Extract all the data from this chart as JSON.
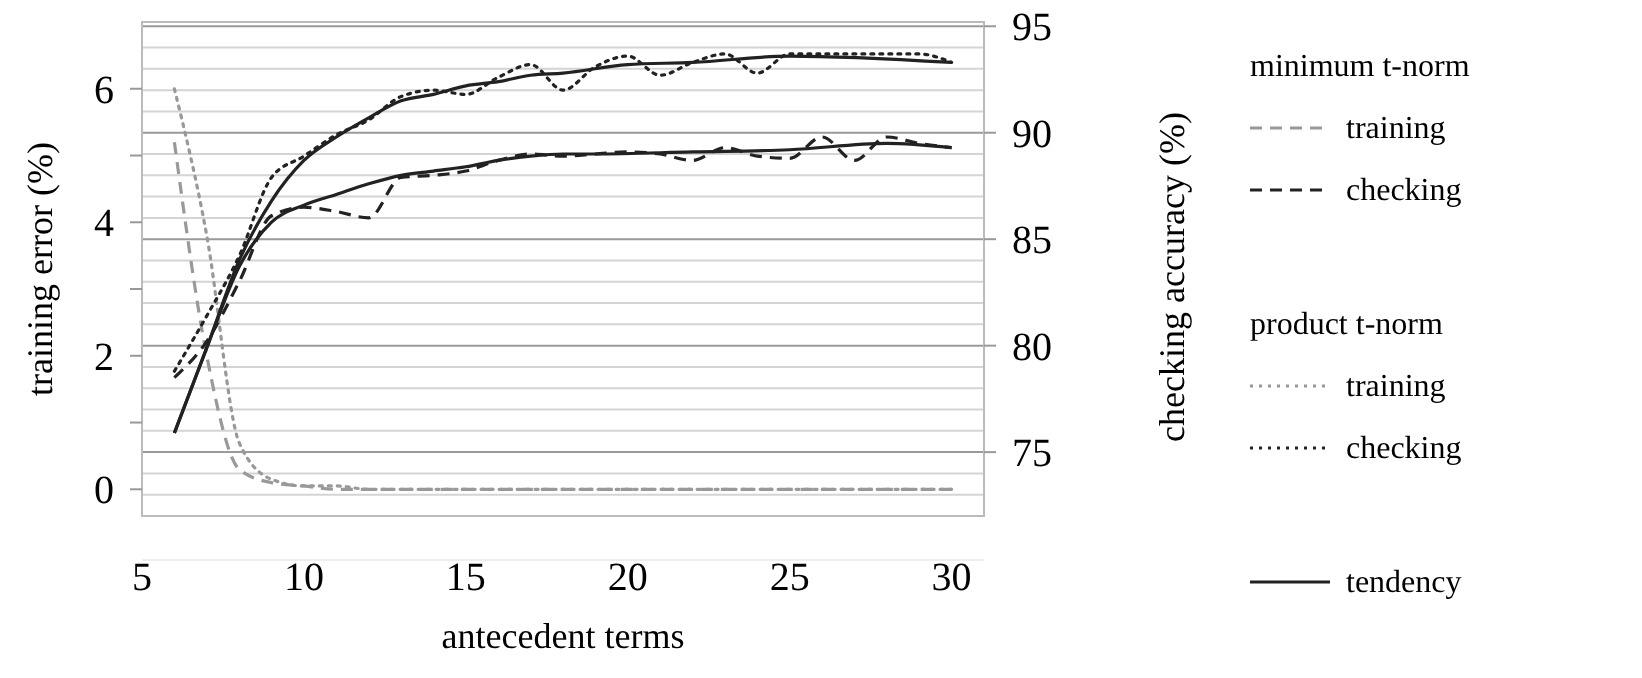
{
  "chart_data": {
    "type": "line",
    "xlabel": "antecedent terms",
    "ylabel": "training error (%)",
    "y2label": "checking accuracy (%)",
    "xlim": [
      5,
      31
    ],
    "xticks": [
      5,
      10,
      15,
      20,
      25,
      30
    ],
    "ylim": [
      -0.4,
      7
    ],
    "yticks": [
      0,
      {
        "value": 1,
        "label": null
      },
      2,
      {
        "value": 3,
        "label": null
      },
      4,
      {
        "value": 5,
        "label": null
      },
      6
    ],
    "y2lim": [
      72,
      95.2
    ],
    "y2ticks": [
      {
        "value": 72,
        "label": null
      },
      {
        "value": 73,
        "label": null
      },
      {
        "value": 74,
        "label": null
      },
      75,
      {
        "value": 76,
        "label": null
      },
      {
        "value": 77,
        "label": null
      },
      {
        "value": 78,
        "label": null
      },
      {
        "value": 79,
        "label": null
      },
      80,
      {
        "value": 81,
        "label": null
      },
      {
        "value": 82,
        "label": null
      },
      {
        "value": 83,
        "label": null
      },
      {
        "value": 84,
        "label": null
      },
      85,
      {
        "value": 86,
        "label": null
      },
      {
        "value": 87,
        "label": null
      },
      {
        "value": 88,
        "label": null
      },
      {
        "value": 89,
        "label": null
      },
      90,
      {
        "value": 91,
        "label": null
      },
      {
        "value": 92,
        "label": null
      },
      {
        "value": 93,
        "label": null
      },
      {
        "value": 94,
        "label": null
      },
      95
    ],
    "grid": "y",
    "legend": "right",
    "marker": "none",
    "annotations": [
      "minimum t-norm",
      "product t-norm"
    ],
    "x": [
      6,
      7,
      8,
      9,
      10,
      11,
      12,
      13,
      14,
      15,
      16,
      17,
      18,
      19,
      20,
      21,
      22,
      23,
      24,
      25,
      26,
      27,
      28,
      29,
      30
    ],
    "series": [
      {
        "name": "training",
        "color": "#999999",
        "line_style": "dashed",
        "values": [
          5.2,
          2.0,
          0.3,
          0.1,
          0.05,
          0,
          0,
          0,
          0,
          0,
          0,
          0,
          0,
          0,
          0,
          0,
          0,
          0,
          0,
          0,
          0,
          0,
          0,
          0,
          0
        ]
      },
      {
        "name": "checking",
        "color": "#222222",
        "line_style": "dashed",
        "axis": "y2",
        "values": [
          78.5,
          80.2,
          83.0,
          86.1,
          86.5,
          86.3,
          86.0,
          87.9,
          88.0,
          88.2,
          88.7,
          89.0,
          88.9,
          89.0,
          89.1,
          89.0,
          88.7,
          89.3,
          88.9,
          88.8,
          89.8,
          88.7,
          89.8,
          89.5,
          89.3
        ]
      },
      {
        "name": "training",
        "color": "#999999",
        "line_style": "dotted",
        "values": [
          6.0,
          3.8,
          0.7,
          0.15,
          0.05,
          0.05,
          0,
          0,
          0,
          0,
          0,
          0,
          0,
          0,
          0,
          0,
          0,
          0,
          0,
          0,
          0,
          0,
          0,
          0,
          0
        ]
      },
      {
        "name": "checking",
        "color": "#222222",
        "line_style": "dotted",
        "axis": "y2",
        "values": [
          78.8,
          81.4,
          84.2,
          87.9,
          88.9,
          89.9,
          90.6,
          91.7,
          92.0,
          91.8,
          92.6,
          93.2,
          92.0,
          93.1,
          93.6,
          92.7,
          93.3,
          93.7,
          92.8,
          93.7,
          93.7,
          93.7,
          93.7,
          93.7,
          93.3
        ]
      },
      {
        "name": "tendency",
        "color": "#222222",
        "line_style": "solid",
        "axis": "y2",
        "x": [
          6,
          7,
          8,
          9,
          10,
          11,
          12,
          13,
          14,
          15,
          16,
          17,
          18,
          20,
          22,
          25,
          30
        ],
        "values": [
          75.9,
          79.9,
          84.0,
          86.8,
          88.7,
          89.8,
          90.7,
          91.5,
          91.8,
          92.2,
          92.4,
          92.7,
          92.8,
          93.2,
          93.3,
          93.6,
          93.3
        ]
      },
      {
        "color": "#222222",
        "line_style": "solid",
        "axis": "y2",
        "x": [
          6,
          7,
          8,
          9,
          10,
          11,
          12,
          13,
          14,
          15,
          16,
          17,
          18,
          19,
          22,
          25,
          28,
          30
        ],
        "values": [
          75.9,
          79.9,
          83.7,
          85.8,
          86.6,
          87.1,
          87.6,
          88.0,
          88.2,
          88.4,
          88.7,
          88.9,
          89.0,
          89.0,
          89.1,
          89.2,
          89.5,
          89.3
        ]
      }
    ]
  }
}
